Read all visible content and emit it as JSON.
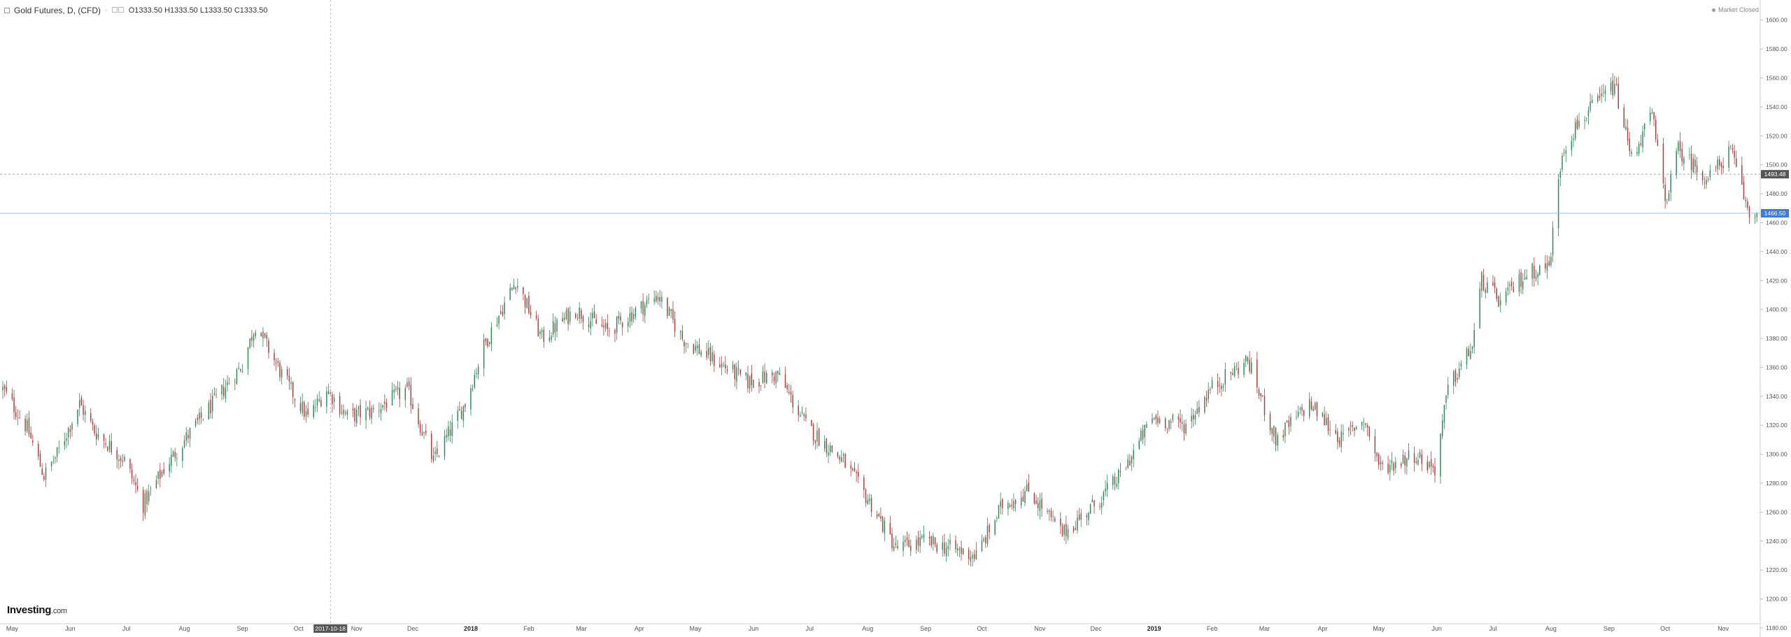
{
  "header": {
    "symbol_title": "Gold Futures, D, (CFD)",
    "dot": "·",
    "open": "O1333.50",
    "high": "H1333.50",
    "low": "L1333.50",
    "close": "C1333.50",
    "market_status": "Market Closed"
  },
  "brand": {
    "name": "Investing",
    "suffix": ".com"
  },
  "colors": {
    "up": "#2d8a57",
    "down": "#b23a3a",
    "crosshair_line": "#8fc1e8",
    "crosshair_label": "#3b7dd8",
    "last_price_line": "#999999",
    "axis_text": "#555555",
    "cursor_label_bg": "#555555"
  },
  "crosshair": {
    "date_label": "2017-10-18",
    "price_label": "1466.50"
  },
  "last_price": {
    "label": "1493.48"
  },
  "chart_data": {
    "type": "candlestick",
    "title": "Gold Futures, D, (CFD)",
    "interval": "D",
    "ylim": [
      1180,
      1610
    ],
    "y_ticks": [
      1180,
      1200,
      1220,
      1240,
      1260,
      1280,
      1300,
      1320,
      1340,
      1360,
      1380,
      1400,
      1420,
      1440,
      1460,
      1480,
      1500,
      1520,
      1540,
      1560,
      1580,
      1600
    ],
    "x_range": [
      "2017-04-26",
      "2019-11-29"
    ],
    "x_ticks": [
      {
        "label": "May",
        "date": "2017-05-01"
      },
      {
        "label": "Jun",
        "date": "2017-06-01"
      },
      {
        "label": "Jul",
        "date": "2017-07-01"
      },
      {
        "label": "Aug",
        "date": "2017-08-01"
      },
      {
        "label": "Sep",
        "date": "2017-09-01"
      },
      {
        "label": "Oct",
        "date": "2017-10-01"
      },
      {
        "label": "Nov",
        "date": "2017-11-01"
      },
      {
        "label": "Dec",
        "date": "2017-12-01"
      },
      {
        "label": "2018",
        "date": "2018-01-01"
      },
      {
        "label": "Feb",
        "date": "2018-02-01"
      },
      {
        "label": "Mar",
        "date": "2018-03-01"
      },
      {
        "label": "Apr",
        "date": "2018-04-01"
      },
      {
        "label": "May",
        "date": "2018-05-01"
      },
      {
        "label": "Jun",
        "date": "2018-06-01"
      },
      {
        "label": "Jul",
        "date": "2018-07-01"
      },
      {
        "label": "Aug",
        "date": "2018-08-01"
      },
      {
        "label": "Sep",
        "date": "2018-09-01"
      },
      {
        "label": "Oct",
        "date": "2018-10-01"
      },
      {
        "label": "Nov",
        "date": "2018-11-01"
      },
      {
        "label": "Dec",
        "date": "2018-12-01"
      },
      {
        "label": "2019",
        "date": "2019-01-01"
      },
      {
        "label": "Feb",
        "date": "2019-02-01"
      },
      {
        "label": "Mar",
        "date": "2019-03-01"
      },
      {
        "label": "Apr",
        "date": "2019-04-01"
      },
      {
        "label": "May",
        "date": "2019-05-01"
      },
      {
        "label": "Jun",
        "date": "2019-06-01"
      },
      {
        "label": "Jul",
        "date": "2019-07-01"
      },
      {
        "label": "Aug",
        "date": "2019-08-01"
      },
      {
        "label": "Sep",
        "date": "2019-09-01"
      },
      {
        "label": "Oct",
        "date": "2019-10-01"
      },
      {
        "label": "Nov",
        "date": "2019-11-01"
      }
    ],
    "crosshair": {
      "date": "2017-10-18",
      "price": 1466.5
    },
    "last_price_level": 1493.48,
    "close_path": [
      {
        "date": "2017-04-26",
        "close": 1345
      },
      {
        "date": "2017-05-09",
        "close": 1318
      },
      {
        "date": "2017-05-18",
        "close": 1285
      },
      {
        "date": "2017-05-25",
        "close": 1300
      },
      {
        "date": "2017-06-06",
        "close": 1335
      },
      {
        "date": "2017-06-14",
        "close": 1316
      },
      {
        "date": "2017-06-30",
        "close": 1296
      },
      {
        "date": "2017-07-10",
        "close": 1265
      },
      {
        "date": "2017-07-21",
        "close": 1290
      },
      {
        "date": "2017-08-04",
        "close": 1315
      },
      {
        "date": "2017-08-18",
        "close": 1338
      },
      {
        "date": "2017-09-01",
        "close": 1362
      },
      {
        "date": "2017-09-08",
        "close": 1390
      },
      {
        "date": "2017-09-22",
        "close": 1355
      },
      {
        "date": "2017-10-06",
        "close": 1325
      },
      {
        "date": "2017-10-16",
        "close": 1345
      },
      {
        "date": "2017-10-27",
        "close": 1326
      },
      {
        "date": "2017-11-10",
        "close": 1330
      },
      {
        "date": "2017-11-28",
        "close": 1345
      },
      {
        "date": "2017-12-12",
        "close": 1295
      },
      {
        "date": "2017-12-29",
        "close": 1335
      },
      {
        "date": "2018-01-08",
        "close": 1375
      },
      {
        "date": "2018-01-25",
        "close": 1420
      },
      {
        "date": "2018-02-08",
        "close": 1380
      },
      {
        "date": "2018-02-26",
        "close": 1400
      },
      {
        "date": "2018-03-15",
        "close": 1385
      },
      {
        "date": "2018-04-11",
        "close": 1410
      },
      {
        "date": "2018-04-24",
        "close": 1380
      },
      {
        "date": "2018-05-11",
        "close": 1365
      },
      {
        "date": "2018-05-29",
        "close": 1350
      },
      {
        "date": "2018-06-14",
        "close": 1355
      },
      {
        "date": "2018-06-29",
        "close": 1320
      },
      {
        "date": "2018-07-19",
        "close": 1295
      },
      {
        "date": "2018-08-03",
        "close": 1265
      },
      {
        "date": "2018-08-16",
        "close": 1235
      },
      {
        "date": "2018-08-31",
        "close": 1240
      },
      {
        "date": "2018-09-14",
        "close": 1235
      },
      {
        "date": "2018-09-28",
        "close": 1230
      },
      {
        "date": "2018-10-12",
        "close": 1265
      },
      {
        "date": "2018-10-26",
        "close": 1275
      },
      {
        "date": "2018-11-13",
        "close": 1245
      },
      {
        "date": "2018-11-30",
        "close": 1265
      },
      {
        "date": "2018-12-14",
        "close": 1285
      },
      {
        "date": "2018-12-31",
        "close": 1325
      },
      {
        "date": "2019-01-18",
        "close": 1320
      },
      {
        "date": "2019-01-31",
        "close": 1345
      },
      {
        "date": "2019-02-20",
        "close": 1365
      },
      {
        "date": "2019-03-07",
        "close": 1310
      },
      {
        "date": "2019-03-25",
        "close": 1335
      },
      {
        "date": "2019-04-11",
        "close": 1310
      },
      {
        "date": "2019-04-23",
        "close": 1325
      },
      {
        "date": "2019-05-02",
        "close": 1290
      },
      {
        "date": "2019-05-20",
        "close": 1300
      },
      {
        "date": "2019-05-31",
        "close": 1290
      },
      {
        "date": "2019-06-07",
        "close": 1345
      },
      {
        "date": "2019-06-20",
        "close": 1375
      },
      {
        "date": "2019-06-25",
        "close": 1420
      },
      {
        "date": "2019-07-05",
        "close": 1405
      },
      {
        "date": "2019-07-19",
        "close": 1425
      },
      {
        "date": "2019-07-31",
        "close": 1430
      },
      {
        "date": "2019-08-07",
        "close": 1510
      },
      {
        "date": "2019-08-16",
        "close": 1530
      },
      {
        "date": "2019-09-04",
        "close": 1555
      },
      {
        "date": "2019-09-13",
        "close": 1505
      },
      {
        "date": "2019-09-24",
        "close": 1535
      },
      {
        "date": "2019-10-01",
        "close": 1475
      },
      {
        "date": "2019-10-08",
        "close": 1510
      },
      {
        "date": "2019-10-24",
        "close": 1490
      },
      {
        "date": "2019-11-05",
        "close": 1510
      },
      {
        "date": "2019-11-15",
        "close": 1465
      },
      {
        "date": "2019-11-29",
        "close": 1470
      }
    ]
  }
}
